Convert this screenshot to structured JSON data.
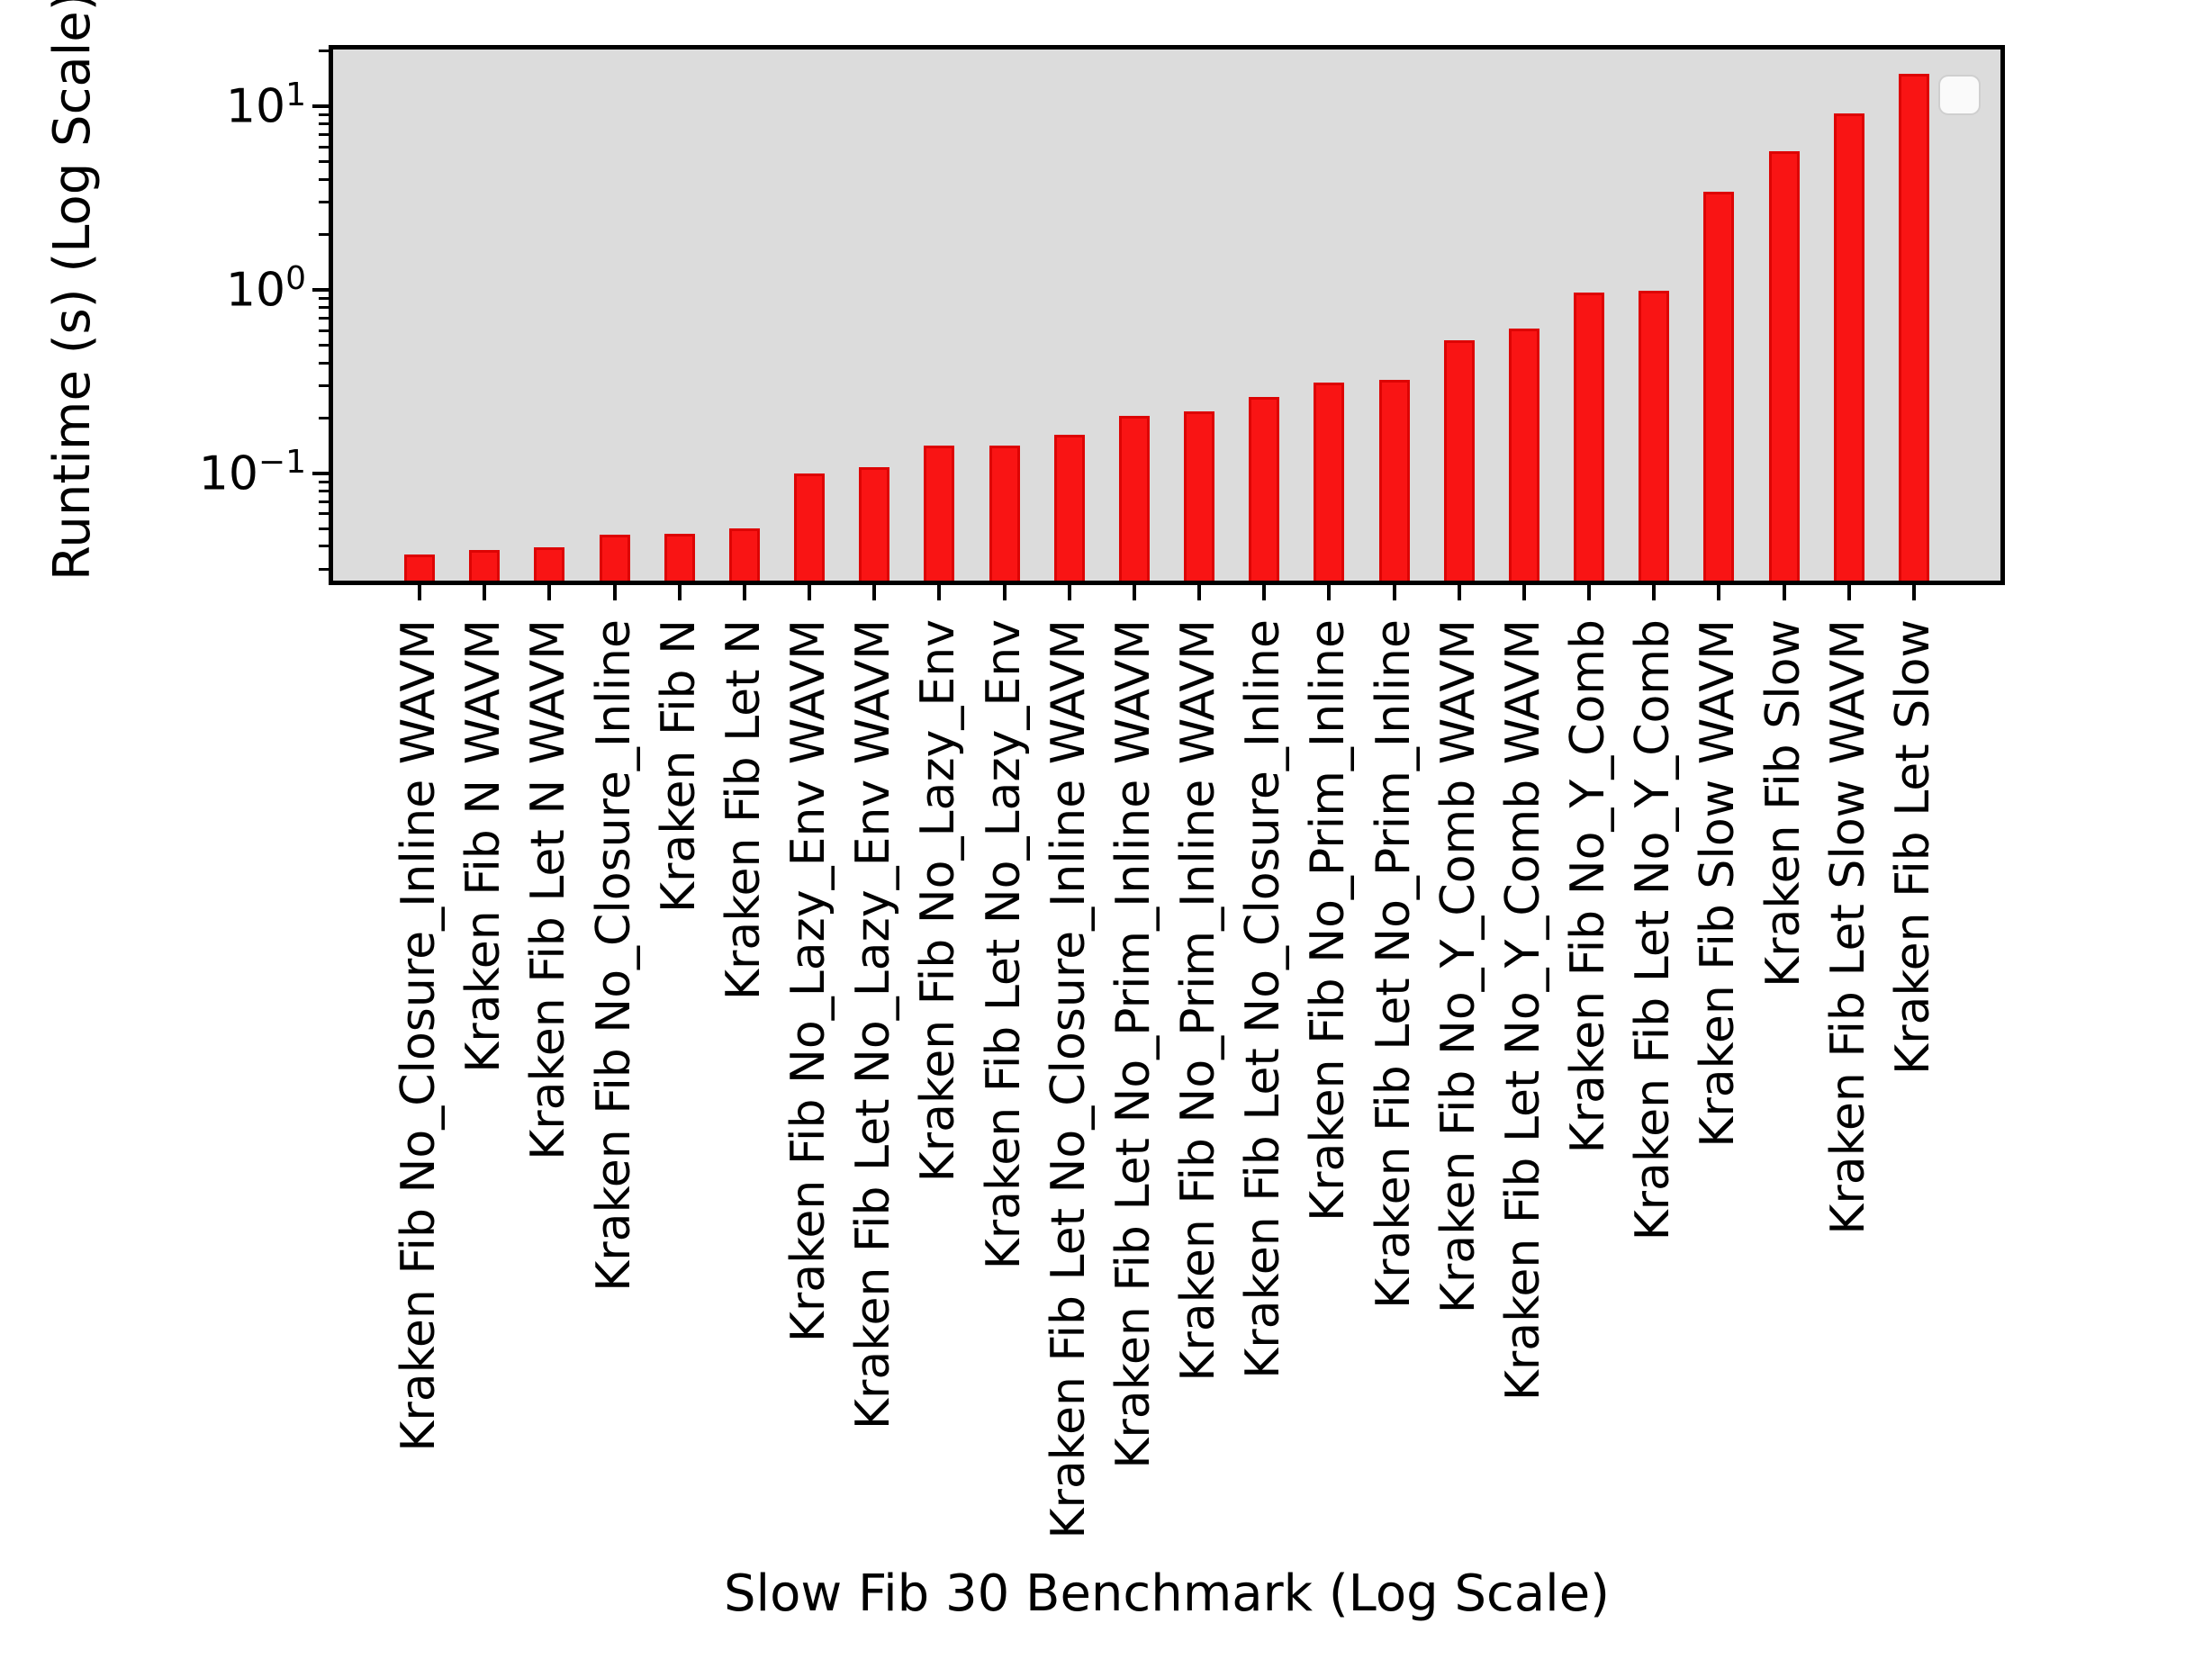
{
  "figure": {
    "background": "#ffffff",
    "plot_background": "#dcdcdc",
    "axis_color": "#000000"
  },
  "y_axis": {
    "label": "Runtime (s) (Log Scale)",
    "tick_labels": [
      {
        "base": "10",
        "exp": "1",
        "value": 10
      },
      {
        "base": "10",
        "exp": "0",
        "value": 1
      },
      {
        "base": "10",
        "exp": "−1",
        "value": 0.1
      }
    ]
  },
  "x_axis": {
    "label": "Slow Fib 30 Benchmark (Log Scale)"
  },
  "legend": {
    "visible": true,
    "entries": []
  },
  "chart_data": {
    "type": "bar",
    "title": "",
    "xlabel": "Slow Fib 30 Benchmark (Log Scale)",
    "ylabel": "Runtime (s) (Log Scale)",
    "y_scale": "log",
    "ylim": [
      0.026,
      20.4
    ],
    "grid": false,
    "legend_position": "upper-right-empty",
    "bar_color": "#f91414",
    "bar_edge_color": "#dd0404",
    "categories": [
      "Kraken Fib No_Closure_Inline WAVM",
      "Kraken Fib N WAVM",
      "Kraken Fib Let N WAVM",
      "Kraken Fib No_Closure_Inline",
      "Kraken Fib N",
      "Kraken Fib Let N",
      "Kraken Fib No_Lazy_Env WAVM",
      "Kraken Fib Let No_Lazy_Env WAVM",
      "Kraken Fib No_Lazy_Env",
      "Kraken Fib Let No_Lazy_Env",
      "Kraken Fib Let No_Closure_Inline WAVM",
      "Kraken Fib Let No_Prim_Inline WAVM",
      "Kraken Fib No_Prim_Inline WAVM",
      "Kraken Fib Let No_Closure_Inline",
      "Kraken Fib No_Prim_Inline",
      "Kraken Fib Let No_Prim_Inline",
      "Kraken Fib No_Y_Comb WAVM",
      "Kraken Fib Let No_Y_Comb WAVM",
      "Kraken Fib No_Y_Comb",
      "Kraken Fib Let No_Y_Comb",
      "Kraken Fib Slow WAVM",
      "Kraken Fib Slow",
      "Kraken Fib Let Slow WAVM",
      "Kraken Fib Let Slow"
    ],
    "values": [
      0.036,
      0.038,
      0.0395,
      0.046,
      0.047,
      0.05,
      0.1,
      0.108,
      0.142,
      0.142,
      0.163,
      0.206,
      0.218,
      0.261,
      0.311,
      0.324,
      0.529,
      0.615,
      0.97,
      0.99,
      3.44,
      5.68,
      9.1,
      15.1
    ]
  }
}
